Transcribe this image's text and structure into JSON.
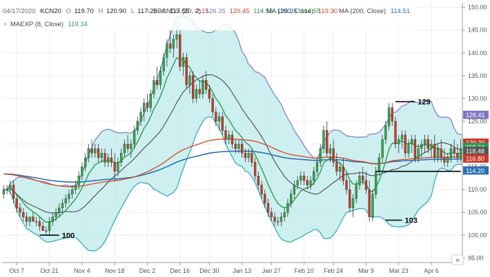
{
  "colors": {
    "band_fill": "#c4ecec",
    "band_line": "#7f77c4",
    "ma100": "#d9461f",
    "ma200": "#2c6fb3",
    "ema8": "#2e9a55",
    "mid": "#565656",
    "up": "#2fa84a",
    "down": "#c63b2a"
  },
  "legend": {
    "date": "04/17/2020",
    "symbol": "KCN20",
    "o_label": "O",
    "o_value": "119.70",
    "h_label": "H",
    "h_value": "120.90",
    "l_label": "L",
    "l_value": "117.25",
    "c_label": "C",
    "c_value": "117.55",
    "chg": "-2.15",
    "bbands_label": "BBANDS (20, 2)",
    "bbands_upper": "126.35",
    "bbands_mid": "120.45",
    "bbands_lower": "114.55",
    "bbands_v4": "126.35",
    "bbands_v5": "114.55",
    "ma100_label": "MA (100, Close)",
    "ma100_value": "119.30",
    "ma200_label": "MA (200, Close)",
    "ma200_value": "114.51",
    "ema_label": "MAEXP (8, Close)",
    "ema_value": "119.34"
  },
  "ui": {
    "expand_symbol": "»",
    "remove_symbol": "×"
  },
  "chart_data": {
    "type": "candlestick",
    "title": "",
    "xlabel": "",
    "ylabel": "",
    "ylim": [
      94,
      151
    ],
    "yticks": [
      95,
      100,
      105,
      110,
      115,
      120,
      125,
      130,
      135,
      140,
      145,
      150
    ],
    "xticks": [
      "Oct 7",
      "Oct 21",
      "Nov 4",
      "Nov 18",
      "Dec 2",
      "Dec 16",
      "Dec 30",
      "Jan 13",
      "Jan 27",
      "Feb 10",
      "Feb 24",
      "Mar 9",
      "Mar 23",
      "Apr 6"
    ],
    "xtick_index": [
      4,
      14,
      24,
      34,
      44,
      54,
      63,
      73,
      82,
      92,
      101,
      111,
      121,
      131
    ],
    "n_sessions": 141,
    "price_tags": [
      {
        "value": "126.41",
        "color": "#7f77c4"
      },
      {
        "value": "120.30",
        "color": "#c63b2a"
      },
      {
        "value": "119.34",
        "color": "#2e9a55"
      },
      {
        "value": "118.48",
        "color": "#565656"
      },
      {
        "value": "116.80",
        "color": "#c63b2a"
      },
      {
        "value": "114.20",
        "color": "#2c6fb3"
      }
    ],
    "annotations": [
      {
        "text": "100",
        "value": 100,
        "from_index": 11,
        "to_index": 17
      },
      {
        "text": "129",
        "value": 129.3,
        "from_index": 120,
        "to_index": 126
      },
      {
        "text": "114",
        "value": 114,
        "from_index": 114,
        "to_index": 140
      },
      {
        "text": "103",
        "value": 103.3,
        "from_index": 117,
        "to_index": 122
      }
    ],
    "candles": [
      [
        109,
        111,
        108,
        110
      ],
      [
        110,
        111,
        109,
        110
      ],
      [
        110,
        112,
        109,
        111
      ],
      [
        111,
        112,
        107,
        108
      ],
      [
        108,
        109,
        105,
        106
      ],
      [
        106,
        107,
        104,
        105
      ],
      [
        105,
        106,
        103,
        104
      ],
      [
        104,
        105,
        102,
        103
      ],
      [
        103,
        104,
        102,
        104
      ],
      [
        104,
        105,
        103,
        103
      ],
      [
        103,
        104,
        102,
        103
      ],
      [
        103,
        104,
        101,
        102
      ],
      [
        102,
        103,
        101,
        101
      ],
      [
        101,
        102,
        100,
        101
      ],
      [
        101,
        104,
        100,
        103
      ],
      [
        103,
        105,
        102,
        104
      ],
      [
        104,
        106,
        103,
        105
      ],
      [
        105,
        107,
        104,
        106
      ],
      [
        106,
        108,
        105,
        107
      ],
      [
        107,
        109,
        106,
        108
      ],
      [
        108,
        110,
        107,
        109
      ],
      [
        109,
        111,
        108,
        110
      ],
      [
        110,
        112,
        109,
        111
      ],
      [
        111,
        114,
        110,
        113
      ],
      [
        113,
        116,
        112,
        115
      ],
      [
        115,
        118,
        114,
        117
      ],
      [
        117,
        120,
        116,
        119
      ],
      [
        119,
        121,
        117,
        118
      ],
      [
        118,
        120,
        117,
        119
      ],
      [
        119,
        120,
        116,
        117
      ],
      [
        117,
        119,
        116,
        118
      ],
      [
        118,
        119,
        115,
        116
      ],
      [
        116,
        118,
        115,
        117
      ],
      [
        117,
        119,
        115,
        116
      ],
      [
        116,
        118,
        112,
        114
      ],
      [
        114,
        117,
        113,
        116
      ],
      [
        116,
        119,
        115,
        118
      ],
      [
        118,
        121,
        117,
        120
      ],
      [
        120,
        122,
        118,
        119
      ],
      [
        119,
        121,
        117,
        120
      ],
      [
        120,
        124,
        119,
        123
      ],
      [
        123,
        126,
        122,
        125
      ],
      [
        125,
        128,
        124,
        127
      ],
      [
        127,
        130,
        125,
        129
      ],
      [
        129,
        131,
        127,
        128
      ],
      [
        128,
        132,
        127,
        131
      ],
      [
        131,
        135,
        130,
        134
      ],
      [
        134,
        137,
        132,
        133
      ],
      [
        133,
        137,
        132,
        136
      ],
      [
        136,
        140,
        135,
        139
      ],
      [
        139,
        143,
        137,
        142
      ],
      [
        142,
        145,
        140,
        141
      ],
      [
        141,
        144,
        139,
        143
      ],
      [
        143,
        146,
        141,
        144
      ],
      [
        144,
        145,
        136,
        137
      ],
      [
        137,
        140,
        135,
        139
      ],
      [
        139,
        140,
        132,
        133
      ],
      [
        133,
        136,
        131,
        135
      ],
      [
        135,
        136,
        129,
        130
      ],
      [
        130,
        133,
        129,
        132
      ],
      [
        132,
        134,
        130,
        131
      ],
      [
        131,
        135,
        130,
        134
      ],
      [
        134,
        136,
        131,
        132
      ],
      [
        132,
        133,
        129,
        130
      ],
      [
        130,
        131,
        126,
        127
      ],
      [
        127,
        128,
        124,
        125
      ],
      [
        125,
        127,
        123,
        126
      ],
      [
        126,
        127,
        122,
        123
      ],
      [
        123,
        124,
        120,
        121
      ],
      [
        121,
        123,
        120,
        122
      ],
      [
        122,
        123,
        119,
        120
      ],
      [
        120,
        121,
        118,
        119
      ],
      [
        119,
        121,
        118,
        120
      ],
      [
        120,
        121,
        117,
        118
      ],
      [
        118,
        119,
        116,
        117
      ],
      [
        117,
        119,
        116,
        118
      ],
      [
        118,
        119,
        115,
        116
      ],
      [
        116,
        117,
        112,
        113
      ],
      [
        113,
        114,
        110,
        111
      ],
      [
        111,
        112,
        108,
        109
      ],
      [
        109,
        110,
        106,
        107
      ],
      [
        107,
        108,
        104,
        105
      ],
      [
        105,
        106,
        103,
        104
      ],
      [
        104,
        105,
        102,
        103
      ],
      [
        103,
        104,
        102,
        103
      ],
      [
        103,
        105,
        102,
        104
      ],
      [
        104,
        106,
        103,
        105
      ],
      [
        105,
        108,
        104,
        107
      ],
      [
        107,
        110,
        106,
        109
      ],
      [
        109,
        112,
        108,
        111
      ],
      [
        111,
        113,
        110,
        112
      ],
      [
        112,
        114,
        111,
        113
      ],
      [
        113,
        114,
        111,
        112
      ],
      [
        112,
        113,
        110,
        111
      ],
      [
        111,
        113,
        110,
        112
      ],
      [
        112,
        115,
        111,
        114
      ],
      [
        114,
        117,
        113,
        116
      ],
      [
        116,
        120,
        115,
        119
      ],
      [
        119,
        124,
        118,
        123
      ],
      [
        123,
        125,
        117,
        118
      ],
      [
        118,
        120,
        116,
        119
      ],
      [
        119,
        121,
        115,
        116
      ],
      [
        116,
        118,
        113,
        114
      ],
      [
        114,
        116,
        112,
        115
      ],
      [
        115,
        117,
        111,
        112
      ],
      [
        112,
        114,
        109,
        110
      ],
      [
        110,
        112,
        105,
        106
      ],
      [
        106,
        109,
        104,
        108
      ],
      [
        108,
        112,
        107,
        111
      ],
      [
        111,
        114,
        110,
        113
      ],
      [
        113,
        115,
        111,
        112
      ],
      [
        112,
        114,
        109,
        110
      ],
      [
        110,
        112,
        103,
        104
      ],
      [
        104,
        110,
        103,
        109
      ],
      [
        109,
        115,
        108,
        114
      ],
      [
        114,
        118,
        113,
        117
      ],
      [
        117,
        122,
        116,
        121
      ],
      [
        121,
        125,
        120,
        124
      ],
      [
        124,
        129,
        123,
        128
      ],
      [
        128,
        129,
        124,
        125
      ],
      [
        125,
        126,
        119,
        120
      ],
      [
        120,
        122,
        118,
        121
      ],
      [
        121,
        123,
        119,
        122
      ],
      [
        122,
        123,
        117,
        118
      ],
      [
        118,
        121,
        117,
        120
      ],
      [
        120,
        122,
        118,
        121
      ],
      [
        121,
        122,
        116,
        117
      ],
      [
        117,
        120,
        116,
        119
      ],
      [
        119,
        121,
        117,
        120
      ],
      [
        120,
        122,
        118,
        121
      ],
      [
        121,
        122,
        118,
        119
      ],
      [
        119,
        121,
        117,
        120
      ],
      [
        120,
        122,
        116,
        117
      ],
      [
        117,
        120,
        116,
        119
      ],
      [
        119,
        121,
        116,
        117
      ],
      [
        117,
        119,
        115,
        116
      ],
      [
        116,
        118,
        115,
        117
      ],
      [
        117,
        120,
        116,
        119
      ],
      [
        119,
        121,
        117,
        118
      ],
      [
        118,
        120,
        116,
        117
      ],
      [
        117,
        121,
        116,
        119
      ],
      [
        119,
        120,
        116,
        117
      ]
    ]
  }
}
